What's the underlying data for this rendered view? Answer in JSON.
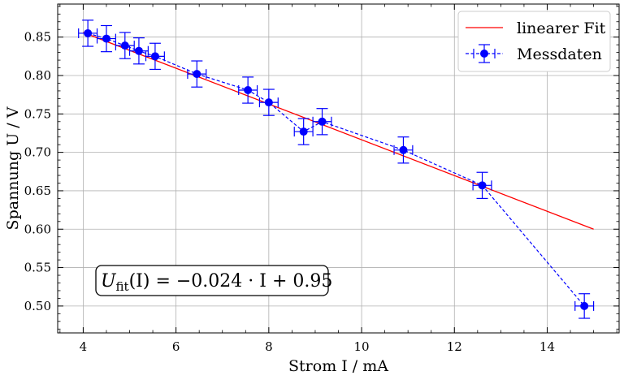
{
  "chart_data": {
    "type": "line",
    "xlabel": "Strom I / mA",
    "ylabel": "Spannung U / V",
    "xlim": [
      3.45,
      15.55
    ],
    "ylim": [
      0.465,
      0.893
    ],
    "x_ticks": [
      4,
      6,
      8,
      10,
      12,
      14
    ],
    "x_tick_labels": [
      "4",
      "6",
      "8",
      "10",
      "12",
      "14"
    ],
    "y_ticks": [
      0.5,
      0.55,
      0.6,
      0.65,
      0.7,
      0.75,
      0.8,
      0.85
    ],
    "y_tick_labels": [
      "0.50",
      "0.55",
      "0.60",
      "0.65",
      "0.70",
      "0.75",
      "0.80",
      "0.85"
    ],
    "grid": true,
    "legend_position": "top-right",
    "series": [
      {
        "name": "linearer Fit",
        "kind": "line",
        "color": "#ff0000",
        "x": [
          4.0,
          15.0
        ],
        "y": [
          0.856,
          0.6
        ]
      },
      {
        "name": "Messdaten",
        "kind": "errorbar",
        "color": "#0000ff",
        "x": [
          4.1,
          4.5,
          4.9,
          5.2,
          5.55,
          6.45,
          7.55,
          8.0,
          8.75,
          9.15,
          10.9,
          12.6,
          14.8
        ],
        "y": [
          0.855,
          0.848,
          0.839,
          0.832,
          0.825,
          0.802,
          0.781,
          0.765,
          0.727,
          0.74,
          0.703,
          0.657,
          0.5
        ],
        "x_err": [
          0.2,
          0.2,
          0.2,
          0.2,
          0.2,
          0.2,
          0.2,
          0.2,
          0.2,
          0.2,
          0.2,
          0.2,
          0.2
        ],
        "y_err": [
          0.017,
          0.017,
          0.017,
          0.017,
          0.017,
          0.017,
          0.017,
          0.017,
          0.017,
          0.017,
          0.017,
          0.017,
          0.016
        ]
      }
    ],
    "annotation": {
      "prefix": "U",
      "subscript": "fit",
      "text": "(I) = −0.024 · I + 0.95"
    }
  }
}
